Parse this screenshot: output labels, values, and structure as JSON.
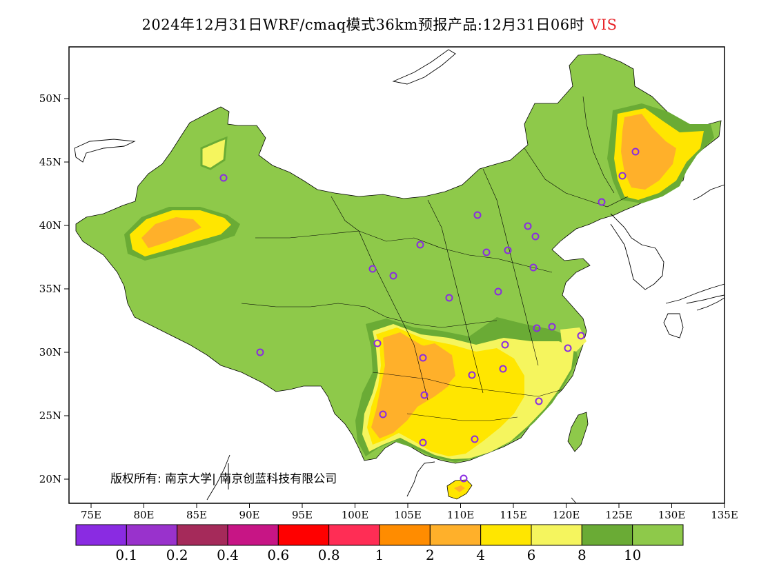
{
  "header": {
    "title": "2024年12月31日WRF/cmaq模式36km预报产品:12月31日06时",
    "variable": "VIS",
    "variable_color": "#e8252a"
  },
  "axes": {
    "lat_labels": [
      "50N",
      "45N",
      "40N",
      "35N",
      "30N",
      "25N",
      "20N"
    ],
    "lon_labels": [
      "75E",
      "80E",
      "85E",
      "90E",
      "95E",
      "100E",
      "105E",
      "110E",
      "115E",
      "120E",
      "125E",
      "130E",
      "135E"
    ]
  },
  "copyright": "版权所有: 南京大学| 南京创蓝科技有限公司",
  "colorbar": {
    "colors": [
      "#8a2be2",
      "#9932cc",
      "#a52a5a",
      "#c71585",
      "#ff0000",
      "#ff2d55",
      "#ff8c00",
      "#ffb02a",
      "#ffe600",
      "#f5f55e",
      "#6aab35",
      "#8ec94a"
    ],
    "labels": [
      "0.1",
      "0.2",
      "0.4",
      "0.6",
      "0.8",
      "1",
      "2",
      "4",
      "6",
      "8",
      "10"
    ]
  },
  "map_colors": {
    "vis_gt10": "#8ec94a",
    "vis_8_10": "#6aab35",
    "vis_6_8": "#f5f55e",
    "vis_4_6": "#ffe600",
    "vis_2_4": "#ffb02a",
    "site_marker": "#8a2be2"
  }
}
